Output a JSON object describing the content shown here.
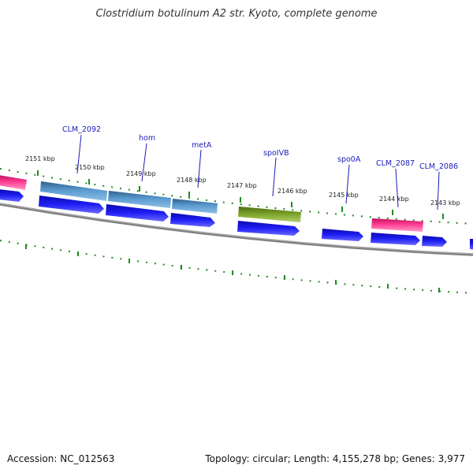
{
  "title": "Clostridium botulinum A2 str. Kyoto, complete genome",
  "footer": {
    "accession": "Accession: NC_012563",
    "summary": "Topology: circular; Length: 4,155,278 bp; Genes: 3,977"
  },
  "colors": {
    "cds": "#1a1af0",
    "gene_blue": "#4682b4",
    "gene_pink": "#ff2a86",
    "gene_green": "#6b8e23",
    "backbone": "#808080",
    "tick": "#228b22",
    "label": "#1a1ab8"
  },
  "kbp_labels": [
    "2151 kbp",
    "2150 kbp",
    "2149 kbp",
    "2148 kbp",
    "2147 kbp",
    "2146 kbp",
    "2145 kbp",
    "2144 kbp",
    "2143 kbp"
  ],
  "gene_labels": [
    "CLM_2092",
    "hom",
    "metA",
    "spoIVB",
    "spo0A",
    "CLM_2087",
    "CLM_2086"
  ]
}
